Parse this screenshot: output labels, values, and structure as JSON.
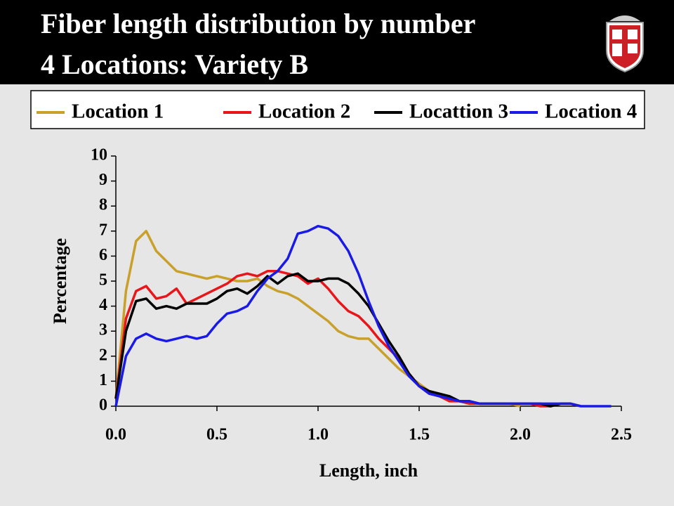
{
  "chart_data": {
    "type": "line",
    "title": [
      "Fiber length distribution by number",
      "4 Locations: Variety B"
    ],
    "x_label": "Length, inch",
    "y_label": "Percentage",
    "x": [
      0,
      0.05,
      0.1,
      0.15,
      0.2,
      0.25,
      0.3,
      0.35,
      0.4,
      0.45,
      0.5,
      0.55,
      0.6,
      0.65,
      0.7,
      0.75,
      0.8,
      0.85,
      0.9,
      0.95,
      1.0,
      1.05,
      1.1,
      1.15,
      1.2,
      1.25,
      1.3,
      1.35,
      1.4,
      1.45,
      1.5,
      1.55,
      1.6,
      1.65,
      1.7,
      1.75,
      1.8,
      1.85,
      1.9,
      1.95,
      2.0,
      2.05,
      2.1,
      2.15,
      2.2,
      2.25,
      2.3,
      2.35,
      2.4,
      2.45
    ],
    "series": [
      {
        "name": "Location 1",
        "color": "#c8a02a",
        "values": [
          0.3,
          4.6,
          6.6,
          7.0,
          6.2,
          5.8,
          5.4,
          5.3,
          5.2,
          5.1,
          5.2,
          5.1,
          5.0,
          5.0,
          5.1,
          4.8,
          4.6,
          4.5,
          4.3,
          4.0,
          3.7,
          3.4,
          3.0,
          2.8,
          2.7,
          2.7,
          2.3,
          1.9,
          1.5,
          1.2,
          0.9,
          0.6,
          0.4,
          0.3,
          0.2,
          0.1,
          0.1,
          0.1,
          0.1,
          0.1,
          0,
          null,
          null,
          null,
          null,
          null,
          null,
          null,
          null,
          null
        ]
      },
      {
        "name": "Location 2",
        "color": "#e8161a",
        "values": [
          0.3,
          3.5,
          4.6,
          4.8,
          4.3,
          4.4,
          4.7,
          4.1,
          4.3,
          4.5,
          4.7,
          4.9,
          5.2,
          5.3,
          5.2,
          5.4,
          5.4,
          5.3,
          5.2,
          4.9,
          5.1,
          4.7,
          4.2,
          3.8,
          3.6,
          3.2,
          2.7,
          2.3,
          1.9,
          1.3,
          0.8,
          0.5,
          0.4,
          0.2,
          0.2,
          0.1,
          0.1,
          0.1,
          0.1,
          0.1,
          0.1,
          0.1,
          0,
          0,
          0.1,
          0.1,
          0,
          null,
          null,
          null
        ]
      },
      {
        "name": "Locattion 3",
        "color": "#000000",
        "values": [
          0.3,
          3.0,
          4.2,
          4.3,
          3.9,
          4.0,
          3.9,
          4.1,
          4.1,
          4.1,
          4.3,
          4.6,
          4.7,
          4.5,
          4.8,
          5.2,
          4.9,
          5.2,
          5.3,
          5.0,
          5.0,
          5.1,
          5.1,
          4.9,
          4.5,
          4.0,
          3.3,
          2.6,
          2.0,
          1.3,
          0.8,
          0.6,
          0.5,
          0.4,
          0.2,
          0.2,
          0.1,
          0.1,
          0.1,
          0.1,
          0.1,
          0.1,
          0.1,
          0,
          0.1,
          0.1,
          null,
          null,
          null,
          null
        ]
      },
      {
        "name": "Location 4",
        "color": "#1a1ae6",
        "values": [
          0,
          2.0,
          2.7,
          2.9,
          2.7,
          2.6,
          2.7,
          2.8,
          2.7,
          2.8,
          3.3,
          3.7,
          3.8,
          4.0,
          4.6,
          5.1,
          5.4,
          5.9,
          6.9,
          7.0,
          7.2,
          7.1,
          6.8,
          6.2,
          5.3,
          4.2,
          3.2,
          2.4,
          1.8,
          1.2,
          0.8,
          0.5,
          0.4,
          0.3,
          0.2,
          0.2,
          0.1,
          0.1,
          0.1,
          0.1,
          0.1,
          0.1,
          0.1,
          0.1,
          0.1,
          0.1,
          0,
          0,
          0,
          0
        ]
      }
    ],
    "xlim": [
      0,
      2.5
    ],
    "xticks": [
      {
        "value": 0,
        "label": "0.0"
      },
      0.5,
      {
        "value": 1,
        "label": "1.0"
      },
      1.5,
      {
        "value": 2,
        "label": "2.0"
      },
      2.5
    ],
    "ylim": [
      0,
      10
    ],
    "yticks": [
      0,
      1,
      2,
      3,
      4,
      5,
      6,
      7,
      8,
      9,
      10
    ],
    "grid": false,
    "legend": "top"
  }
}
